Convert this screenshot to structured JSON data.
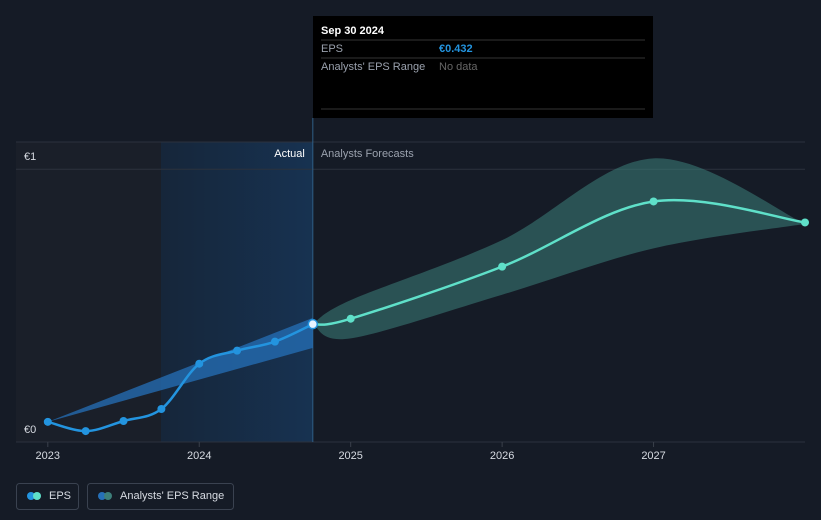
{
  "chart_data": {
    "type": "line",
    "xlim": [
      2022.79,
      2028
    ],
    "xticks": [
      2023,
      2024,
      2025,
      2026,
      2027
    ],
    "ylim": [
      0,
      1.1
    ],
    "yticks": [
      {
        "value": 0,
        "label": "€0"
      },
      {
        "value": 1,
        "label": "€1"
      }
    ],
    "grid": true,
    "forecast_from": 2024.75,
    "actual_label": "Actual",
    "forecast_label": "Analysts Forecasts",
    "series": [
      {
        "name": "EPS",
        "color": "#2394df",
        "forecast_color": "#5fe0c9",
        "x": [
          2023,
          2023.25,
          2023.5,
          2023.75,
          2024,
          2024.25,
          2024.5,
          2024.75,
          2025,
          2026,
          2027,
          2028
        ],
        "values": [
          0.074,
          0.04,
          0.077,
          0.121,
          0.287,
          0.335,
          0.368,
          0.432,
          0.452,
          0.643,
          0.882,
          0.805
        ]
      }
    ],
    "range": {
      "name": "Analysts' EPS Range",
      "color": "#2f6f8a",
      "actual": {
        "color": "#2670b8",
        "x": [
          2023,
          2024.75
        ],
        "low": [
          0.074,
          0.345
        ],
        "high": [
          0.074,
          0.455
        ]
      },
      "forecast": {
        "color": "#3d7f7a",
        "x": [
          2024.75,
          2025,
          2026,
          2027,
          2028
        ],
        "low": [
          0.432,
          0.38,
          0.54,
          0.71,
          0.8
        ],
        "high": [
          0.432,
          0.52,
          0.74,
          1.04,
          0.8
        ]
      }
    },
    "tooltip": {
      "date": "Sep 30 2024",
      "eps_name": "EPS",
      "eps_value": 0.432,
      "eps_value_label": "€0.432",
      "range_name": "Analysts' EPS Range",
      "range_value": "No data"
    }
  }
}
